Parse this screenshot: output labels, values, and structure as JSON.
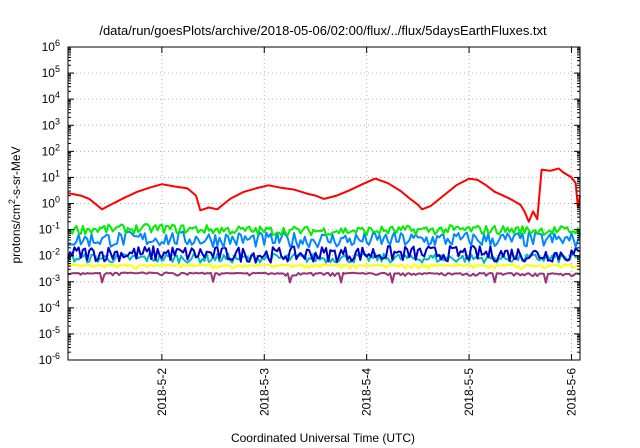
{
  "chart_data": {
    "type": "line",
    "title": "/data/run/goesPlots/archive/2018-05-06/02:00/flux/../flux/5daysEarthFluxes.txt",
    "xlabel": "Coordinated Universal Time (UTC)",
    "ylabel": "protons/cm²-s-sr-MeV",
    "ylabel_parts": {
      "pre": "protons/cm",
      "sup": "2",
      "post": "-s-sr-MeV"
    },
    "x_axis": {
      "type": "time",
      "range": [
        "2018-05-01T02:00",
        "2018-05-06T02:00"
      ],
      "ticks": [
        "2018-5-2",
        "2018-5-3",
        "2018-5-4",
        "2018-5-5",
        "2018-5-6"
      ],
      "tick_dates": [
        "2018-05-02T00:00",
        "2018-05-03T00:00",
        "2018-05-04T00:00",
        "2018-05-05T00:00",
        "2018-05-06T00:00"
      ]
    },
    "y_axis": {
      "scale": "log",
      "range": [
        1e-06,
        1000000.0
      ],
      "ticks": [
        {
          "base": "10",
          "exp": "-6"
        },
        {
          "base": "10",
          "exp": "-5"
        },
        {
          "base": "10",
          "exp": "-4"
        },
        {
          "base": "10",
          "exp": "-3"
        },
        {
          "base": "10",
          "exp": "-2"
        },
        {
          "base": "10",
          "exp": "-1"
        },
        {
          "base": "10",
          "exp": "0"
        },
        {
          "base": "10",
          "exp": "1"
        },
        {
          "base": "10",
          "exp": "2"
        },
        {
          "base": "10",
          "exp": "3"
        },
        {
          "base": "10",
          "exp": "4"
        },
        {
          "base": "10",
          "exp": "5"
        },
        {
          "base": "10",
          "exp": "6"
        }
      ]
    },
    "grid": true,
    "legend": "none",
    "series": [
      {
        "color": "#ff0000",
        "width": 2,
        "points": [
          [
            "2018-05-01T02:00",
            2.5
          ],
          [
            "2018-05-01T05:00",
            2.0
          ],
          [
            "2018-05-01T07:00",
            1.5
          ],
          [
            "2018-05-01T09:00",
            0.8
          ],
          [
            "2018-05-01T10:00",
            0.6
          ],
          [
            "2018-05-01T12:00",
            0.9
          ],
          [
            "2018-05-01T15:00",
            1.6
          ],
          [
            "2018-05-01T18:00",
            2.7
          ],
          [
            "2018-05-01T21:00",
            4.0
          ],
          [
            "2018-05-02T00:00",
            5.5
          ],
          [
            "2018-05-02T03:00",
            4.5
          ],
          [
            "2018-05-02T06:00",
            3.8
          ],
          [
            "2018-05-02T08:00",
            2.0
          ],
          [
            "2018-05-02T09:00",
            0.55
          ],
          [
            "2018-05-02T11:00",
            0.7
          ],
          [
            "2018-05-02T13:00",
            0.6
          ],
          [
            "2018-05-02T16:00",
            1.5
          ],
          [
            "2018-05-02T19:00",
            2.7
          ],
          [
            "2018-05-02T22:00",
            3.8
          ],
          [
            "2018-05-03T01:00",
            5.0
          ],
          [
            "2018-05-03T04:00",
            4.0
          ],
          [
            "2018-05-03T07:00",
            3.4
          ],
          [
            "2018-05-03T10:00",
            2.4
          ],
          [
            "2018-05-03T12:00",
            2.0
          ],
          [
            "2018-05-03T14:00",
            1.5
          ],
          [
            "2018-05-03T17:00",
            2.0
          ],
          [
            "2018-05-03T20:00",
            3.2
          ],
          [
            "2018-05-03T23:00",
            5.5
          ],
          [
            "2018-05-04T02:00",
            9.0
          ],
          [
            "2018-05-04T05:00",
            6.0
          ],
          [
            "2018-05-04T08:00",
            3.0
          ],
          [
            "2018-05-04T10:00",
            1.6
          ],
          [
            "2018-05-04T12:00",
            0.9
          ],
          [
            "2018-05-04T13:00",
            0.6
          ],
          [
            "2018-05-04T15:00",
            0.8
          ],
          [
            "2018-05-04T18:00",
            2.0
          ],
          [
            "2018-05-04T21:00",
            5.0
          ],
          [
            "2018-05-05T00:00",
            9.0
          ],
          [
            "2018-05-05T02:00",
            8.0
          ],
          [
            "2018-05-05T04:00",
            5.0
          ],
          [
            "2018-05-05T06:00",
            2.8
          ],
          [
            "2018-05-05T08:00",
            2.0
          ],
          [
            "2018-05-05T10:00",
            1.4
          ],
          [
            "2018-05-05T12:00",
            0.9
          ],
          [
            "2018-05-05T13:00",
            0.5
          ],
          [
            "2018-05-05T14:00",
            0.2
          ],
          [
            "2018-05-05T15:00",
            0.5
          ],
          [
            "2018-05-05T16:00",
            0.25
          ],
          [
            "2018-05-05T17:00",
            20
          ],
          [
            "2018-05-05T19:00",
            18
          ],
          [
            "2018-05-05T21:00",
            22
          ],
          [
            "2018-05-05T22:00",
            16
          ],
          [
            "2018-05-06T00:00",
            10
          ],
          [
            "2018-05-06T01:00",
            6.0
          ],
          [
            "2018-05-06T01:30",
            0.7
          ],
          [
            "2018-05-06T02:00",
            2.0
          ]
        ]
      },
      {
        "color": "#00ee00",
        "width": 2,
        "points": [
          [
            "2018-05-01T02:00",
            0.1
          ],
          [
            "2018-05-02T00:00",
            0.11
          ],
          [
            "2018-05-03T00:00",
            0.09
          ],
          [
            "2018-05-04T00:00",
            0.09
          ],
          [
            "2018-05-05T00:00",
            0.1
          ],
          [
            "2018-05-06T02:00",
            0.09
          ]
        ]
      },
      {
        "color": "#0088ff",
        "width": 2,
        "points": [
          [
            "2018-05-01T02:00",
            0.04
          ],
          [
            "2018-05-02T00:00",
            0.045
          ],
          [
            "2018-05-03T00:00",
            0.04
          ],
          [
            "2018-05-04T00:00",
            0.04
          ],
          [
            "2018-05-05T00:00",
            0.042
          ],
          [
            "2018-05-06T02:00",
            0.04
          ]
        ]
      },
      {
        "color": "#0000cc",
        "width": 2,
        "points": [
          [
            "2018-05-01T02:00",
            0.012
          ],
          [
            "2018-05-02T00:00",
            0.012
          ],
          [
            "2018-05-03T00:00",
            0.011
          ],
          [
            "2018-05-04T00:00",
            0.012
          ],
          [
            "2018-05-05T00:00",
            0.012
          ],
          [
            "2018-05-06T02:00",
            0.011
          ]
        ]
      },
      {
        "color": "#00bbbb",
        "width": 2,
        "points": [
          [
            "2018-05-01T02:00",
            0.008
          ],
          [
            "2018-05-02T00:00",
            0.008
          ],
          [
            "2018-05-03T00:00",
            0.008
          ],
          [
            "2018-05-04T00:00",
            0.008
          ],
          [
            "2018-05-05T00:00",
            0.008
          ],
          [
            "2018-05-06T02:00",
            0.008
          ]
        ]
      },
      {
        "color": "#ffff00",
        "width": 2,
        "points": [
          [
            "2018-05-01T02:00",
            0.0045
          ],
          [
            "2018-05-02T00:00",
            0.0045
          ],
          [
            "2018-05-03T00:00",
            0.0045
          ],
          [
            "2018-05-04T00:00",
            0.0045
          ],
          [
            "2018-05-05T00:00",
            0.0045
          ],
          [
            "2018-05-06T02:00",
            0.0045
          ]
        ]
      },
      {
        "color": "#993377",
        "width": 2,
        "points": [
          [
            "2018-05-01T02:00",
            0.0022
          ],
          [
            "2018-05-02T00:00",
            0.0023
          ],
          [
            "2018-05-03T00:00",
            0.0022
          ],
          [
            "2018-05-04T00:00",
            0.0022
          ],
          [
            "2018-05-05T00:00",
            0.0022
          ],
          [
            "2018-05-06T02:00",
            0.0021
          ]
        ]
      }
    ],
    "noise": [
      {
        "down_only": false,
        "amp": 0.18,
        "spikes": []
      },
      {
        "down_only": false,
        "amp": 0.18,
        "spikes": []
      },
      {
        "down_only": false,
        "amp": 0.3,
        "spikes": []
      },
      {
        "down_only": false,
        "amp": 0.3,
        "spikes": []
      },
      {
        "down_only": false,
        "amp": 0.18,
        "spikes": []
      },
      {
        "down_only": true,
        "amp": 0.15,
        "spikes": []
      },
      {
        "down_only": true,
        "amp": 0.12,
        "spikes": [
          "2018-05-01T10:00",
          "2018-05-02T12:00",
          "2018-05-03T06:00",
          "2018-05-03T18:00",
          "2018-05-04T06:00",
          "2018-05-05T06:00",
          "2018-05-05T18:00"
        ]
      }
    ]
  }
}
